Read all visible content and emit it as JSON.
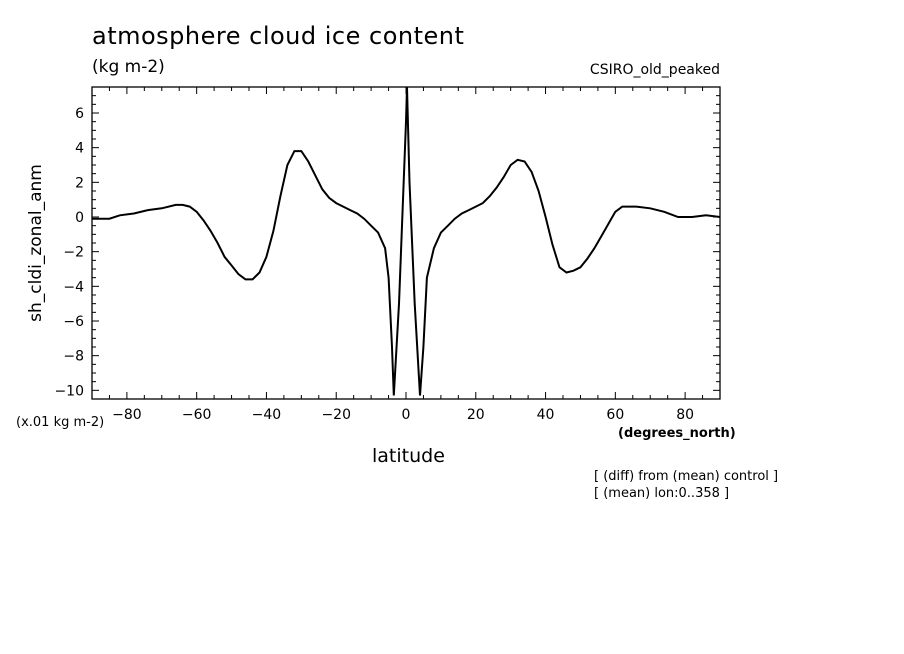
{
  "header": {
    "title": "atmosphere cloud ice content",
    "units": "(kg m-2)",
    "model": "CSIRO_old_peaked",
    "y_scale_note": "(x.01 kg m-2)",
    "x_units": "(degrees_north)",
    "notes": [
      "[ (diff) from (mean) control ]",
      "[ (mean) lon:0..358 ]"
    ]
  },
  "chart_data": {
    "type": "line",
    "title": "atmosphere cloud ice content",
    "xlabel": "latitude",
    "ylabel": "sh_cldi_zonal_anm",
    "xlim": [
      -90,
      90
    ],
    "ylim": [
      -10.5,
      7.5
    ],
    "x_ticks": [
      -80,
      -60,
      -40,
      -20,
      0,
      20,
      40,
      60,
      80
    ],
    "y_ticks": [
      -10,
      -8,
      -6,
      -4,
      -2,
      0,
      2,
      4,
      6
    ],
    "grid": false,
    "series": [
      {
        "x": [
          -90,
          -85,
          -82,
          -78,
          -74,
          -70,
          -66,
          -64,
          -62,
          -60,
          -58,
          -56,
          -54,
          -52,
          -50,
          -48,
          -46,
          -44,
          -42,
          -40,
          -38,
          -36,
          -34,
          -32,
          -30,
          -28,
          -26,
          -24,
          -22,
          -20,
          -18,
          -16,
          -14,
          -12,
          -10,
          -8,
          -6,
          -5,
          -4,
          -3.5,
          -2,
          0,
          0.3,
          1,
          2.5,
          4,
          5,
          6,
          8,
          10,
          12,
          14,
          16,
          18,
          20,
          22,
          24,
          26,
          28,
          30,
          32,
          34,
          36,
          38,
          40,
          42,
          44,
          46,
          48,
          50,
          52,
          54,
          56,
          58,
          60,
          62,
          66,
          70,
          74,
          78,
          82,
          86,
          90
        ],
        "y": [
          -0.1,
          -0.1,
          0.1,
          0.2,
          0.4,
          0.5,
          0.7,
          0.7,
          0.6,
          0.3,
          -0.2,
          -0.8,
          -1.5,
          -2.3,
          -2.8,
          -3.3,
          -3.6,
          -3.6,
          -3.2,
          -2.3,
          -0.8,
          1.2,
          3.0,
          3.8,
          3.8,
          3.2,
          2.4,
          1.6,
          1.1,
          0.8,
          0.6,
          0.4,
          0.2,
          -0.1,
          -0.5,
          -0.9,
          -1.8,
          -3.5,
          -7.5,
          -10.3,
          -5.0,
          5.5,
          7.5,
          2.0,
          -5.0,
          -10.3,
          -7.5,
          -3.5,
          -1.8,
          -0.9,
          -0.5,
          -0.1,
          0.2,
          0.4,
          0.6,
          0.8,
          1.2,
          1.7,
          2.3,
          3.0,
          3.3,
          3.2,
          2.6,
          1.5,
          0.0,
          -1.6,
          -2.9,
          -3.2,
          -3.1,
          -2.9,
          -2.4,
          -1.8,
          -1.1,
          -0.4,
          0.3,
          0.6,
          0.6,
          0.5,
          0.3,
          0.0,
          0.0,
          0.1,
          0.0
        ]
      }
    ]
  }
}
